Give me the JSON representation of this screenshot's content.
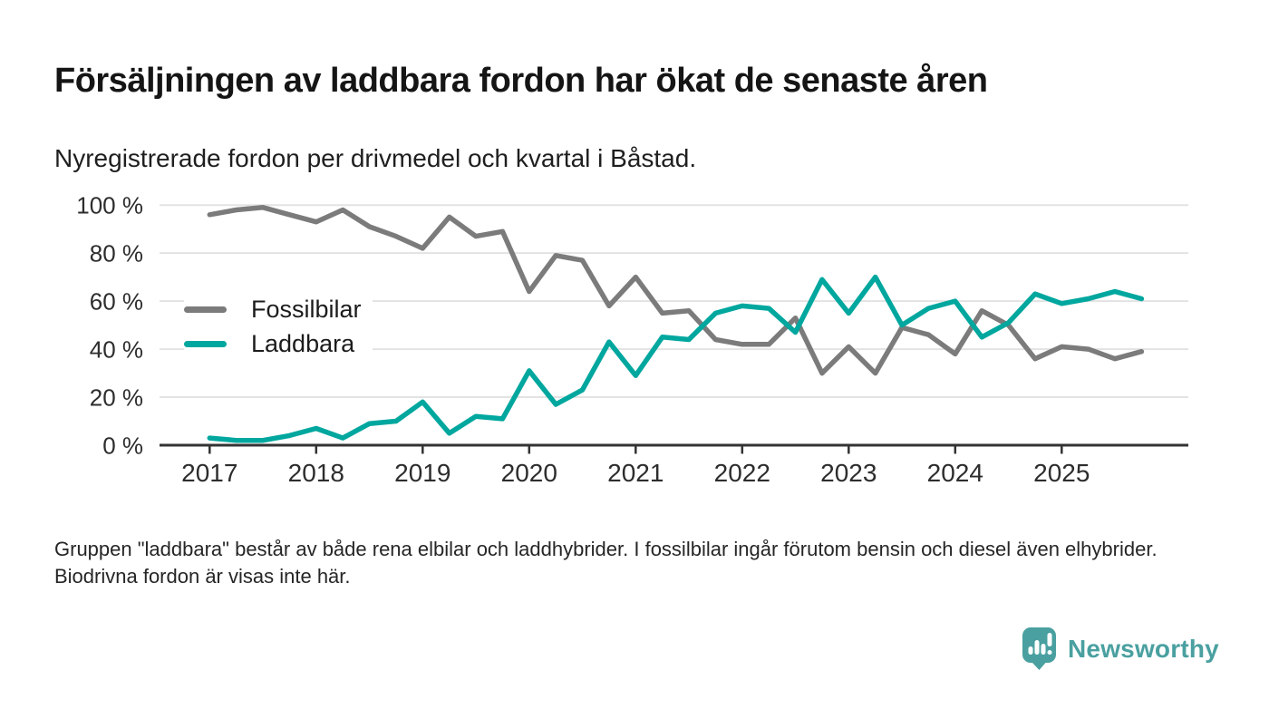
{
  "header": {
    "title": "Försäljningen av laddbara fordon har ökat de senaste åren",
    "subtitle": "Nyregistrerade fordon per drivmedel och kvartal i Båstad."
  },
  "chart_data": {
    "type": "line",
    "title": "Försäljningen av laddbara fordon har ökat de senaste åren",
    "subtitle": "Nyregistrerade fordon per drivmedel och kvartal i Båstad.",
    "x_unit": "quarter",
    "x_start": "2017 Q1",
    "x_end": "2025 Q4",
    "quarters_per_year": 4,
    "x_tick_labels": [
      "2017",
      "2018",
      "2019",
      "2020",
      "2021",
      "2022",
      "2023",
      "2024",
      "2025"
    ],
    "y_tick_values": [
      0,
      20,
      40,
      60,
      80,
      100
    ],
    "y_tick_labels": [
      "0 %",
      "20 %",
      "40 %",
      "60 %",
      "80 %",
      "100 %"
    ],
    "ylim": [
      0,
      100
    ],
    "grid": "horizontal",
    "legend_position": "inside-left",
    "series": [
      {
        "name": "Fossilbilar",
        "color": "#7b7b7b",
        "values": [
          96,
          98,
          99,
          96,
          93,
          98,
          91,
          87,
          82,
          95,
          87,
          89,
          64,
          79,
          77,
          58,
          70,
          55,
          56,
          44,
          42,
          42,
          53,
          30,
          41,
          30,
          49,
          46,
          38,
          56,
          50,
          36,
          41,
          40,
          36,
          39
        ]
      },
      {
        "name": "Laddbara",
        "color": "#00a79e",
        "values": [
          3,
          2,
          2,
          4,
          7,
          3,
          9,
          10,
          18,
          5,
          12,
          11,
          31,
          17,
          23,
          43,
          29,
          45,
          44,
          55,
          58,
          57,
          47,
          69,
          55,
          70,
          50,
          57,
          60,
          45,
          51,
          63,
          59,
          61,
          64,
          61
        ]
      }
    ]
  },
  "footnote": {
    "text": "Gruppen \"laddbara\" består av både rena elbilar och laddhybrider. I fossilbilar ingår förutom bensin och diesel även elhybrider. Biodrivna fordon är visas inte här."
  },
  "logo": {
    "text": "Newsworthy"
  },
  "colors": {
    "axis": "#333333",
    "gridline": "#e3e3e3",
    "tick_text": "#2d2d2d",
    "logo_teal": "#4aa0a0"
  }
}
